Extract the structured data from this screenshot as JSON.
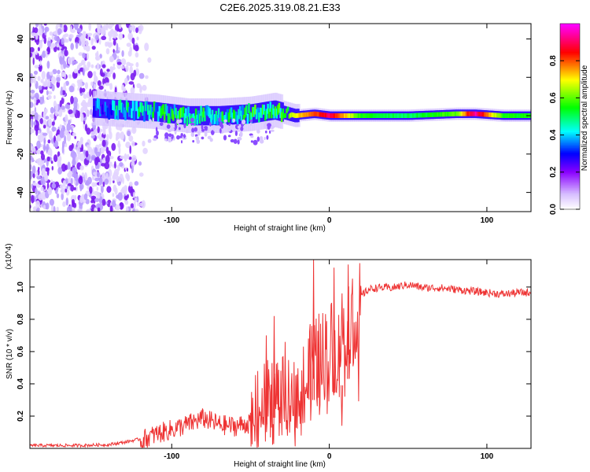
{
  "figure": {
    "title": "C2E6.2025.319.08.21.E33"
  },
  "chart_data": [
    {
      "type": "heatmap",
      "xlabel": "Height of straight line (km)",
      "ylabel": "Frequency (Hz)",
      "xlim": [
        -190,
        128
      ],
      "ylim": [
        -50,
        48
      ],
      "xticks": [
        -100,
        0,
        100
      ],
      "yticks": [
        -40,
        -20,
        0,
        20,
        40
      ],
      "colorbar": {
        "label": "Normalized spectral amplitude",
        "range": [
          0,
          1
        ],
        "ticks": [
          "0.0",
          "0.2",
          "0.4",
          "0.6",
          "0.8"
        ],
        "tick_values": [
          0.0,
          0.2,
          0.4,
          0.6,
          0.8
        ],
        "colors": [
          "#ffffff",
          "#8a00ff",
          "#0000ff",
          "#00ffff",
          "#00ff00",
          "#ffff00",
          "#ff0000",
          "#ff00ff"
        ]
      },
      "noise_region": {
        "x_from": -190,
        "x_to": -113,
        "y_from": -50,
        "y_to": 48
      },
      "signal_band": [
        {
          "x": -150,
          "f": 4,
          "amp": 0.3
        },
        {
          "x": -130,
          "f": 3,
          "amp": 0.45
        },
        {
          "x": -110,
          "f": 2,
          "amp": 0.45
        },
        {
          "x": -90,
          "f": 0,
          "amp": 0.5
        },
        {
          "x": -70,
          "f": 0,
          "amp": 0.45
        },
        {
          "x": -50,
          "f": 1,
          "amp": 0.5
        },
        {
          "x": -35,
          "f": 3,
          "amp": 0.5
        },
        {
          "x": -22,
          "f": 0,
          "amp": 0.7
        },
        {
          "x": -10,
          "f": 1,
          "amp": 0.8
        },
        {
          "x": 0,
          "f": 0,
          "amp": 0.9
        },
        {
          "x": 20,
          "f": 0,
          "amp": 0.55
        },
        {
          "x": 50,
          "f": 0,
          "amp": 0.5
        },
        {
          "x": 80,
          "f": 1,
          "amp": 0.6
        },
        {
          "x": 92,
          "f": 1,
          "amp": 0.95
        },
        {
          "x": 110,
          "f": 0,
          "amp": 0.55
        },
        {
          "x": 128,
          "f": 0,
          "amp": 0.55
        }
      ]
    },
    {
      "type": "line",
      "xlabel": "Height of straight line (km)",
      "ylabel": "SNR (10 * v/v)",
      "y_multiplier": "(x10^4)",
      "xlim": [
        -190,
        128
      ],
      "ylim": [
        0,
        1.17
      ],
      "xticks": [
        -100,
        0,
        100
      ],
      "yticks": [
        "0.2",
        "0.4",
        "0.6",
        "0.8",
        "1.0"
      ],
      "ytick_values": [
        0.2,
        0.4,
        0.6,
        0.8,
        1.0
      ],
      "color": "#ee3333",
      "series": [
        {
          "name": "SNR",
          "x": [
            -190,
            -160,
            -140,
            -130,
            -120,
            -110,
            -100,
            -90,
            -80,
            -70,
            -60,
            -50,
            -45,
            -40,
            -35,
            -30,
            -25,
            -20,
            -15,
            -10,
            -5,
            0,
            5,
            10,
            15,
            20,
            25,
            30,
            40,
            50,
            60,
            70,
            80,
            90,
            100,
            110,
            120,
            128
          ],
          "y": [
            0.02,
            0.02,
            0.025,
            0.04,
            0.06,
            0.1,
            0.13,
            0.16,
            0.2,
            0.16,
            0.15,
            0.17,
            0.26,
            0.3,
            0.38,
            0.35,
            0.3,
            0.4,
            0.45,
            0.6,
            0.62,
            0.7,
            0.68,
            0.85,
            0.88,
            0.95,
            0.99,
            1.0,
            1.0,
            1.02,
            1.0,
            1.0,
            0.99,
            0.98,
            0.97,
            0.96,
            0.97,
            0.97
          ]
        }
      ],
      "peaks": [
        {
          "x": -40,
          "y": 0.7
        },
        {
          "x": -35,
          "y": 0.82
        },
        {
          "x": -28,
          "y": 0.66
        },
        {
          "x": -10,
          "y": 1.17
        },
        {
          "x": 3,
          "y": 1.12
        },
        {
          "x": 8,
          "y": 0.14
        },
        {
          "x": 12,
          "y": 1.14
        }
      ]
    }
  ]
}
